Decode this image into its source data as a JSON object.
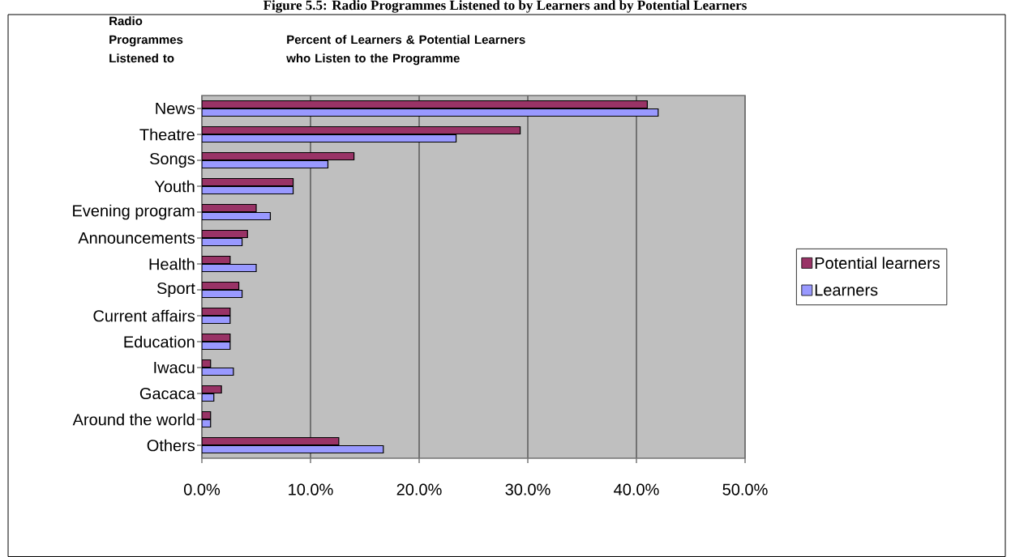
{
  "chart_data": {
    "type": "bar",
    "orientation": "horizontal",
    "title": "Figure 5.5: Radio Programmes Listened to by Learners and by Potential Learners",
    "xlabel": "Percent of Learners & Potential Learners who Listen to the Programme",
    "ylabel": "Radio Programmes Listened to",
    "categories": [
      "News",
      "Theatre",
      "Songs",
      "Youth",
      "Evening program",
      "Announcements",
      "Health",
      "Sport",
      "Current affairs",
      "Education",
      "Iwacu",
      "Gacaca",
      "Around the world",
      "Others"
    ],
    "series": [
      {
        "name": "Potential learners",
        "color": "#993366",
        "values": [
          41.0,
          29.3,
          14.0,
          8.4,
          5.0,
          4.2,
          2.6,
          3.4,
          2.6,
          2.6,
          0.8,
          1.8,
          0.8,
          12.6
        ]
      },
      {
        "name": "Learners",
        "color": "#9999ff",
        "values": [
          42.0,
          23.4,
          11.6,
          8.4,
          6.3,
          3.7,
          5.0,
          3.7,
          2.6,
          2.6,
          2.9,
          1.1,
          0.8,
          16.7
        ]
      }
    ],
    "xlim": [
      0,
      50
    ],
    "xticks": [
      {
        "value": 0,
        "label": "0.0%"
      },
      {
        "value": 10,
        "label": "10.0%"
      },
      {
        "value": 20,
        "label": "20.0%"
      },
      {
        "value": 30,
        "label": "30.0%"
      },
      {
        "value": 40,
        "label": "40.0%"
      },
      {
        "value": 50,
        "label": "50.0%"
      }
    ],
    "grid": "x",
    "legend": "right"
  }
}
